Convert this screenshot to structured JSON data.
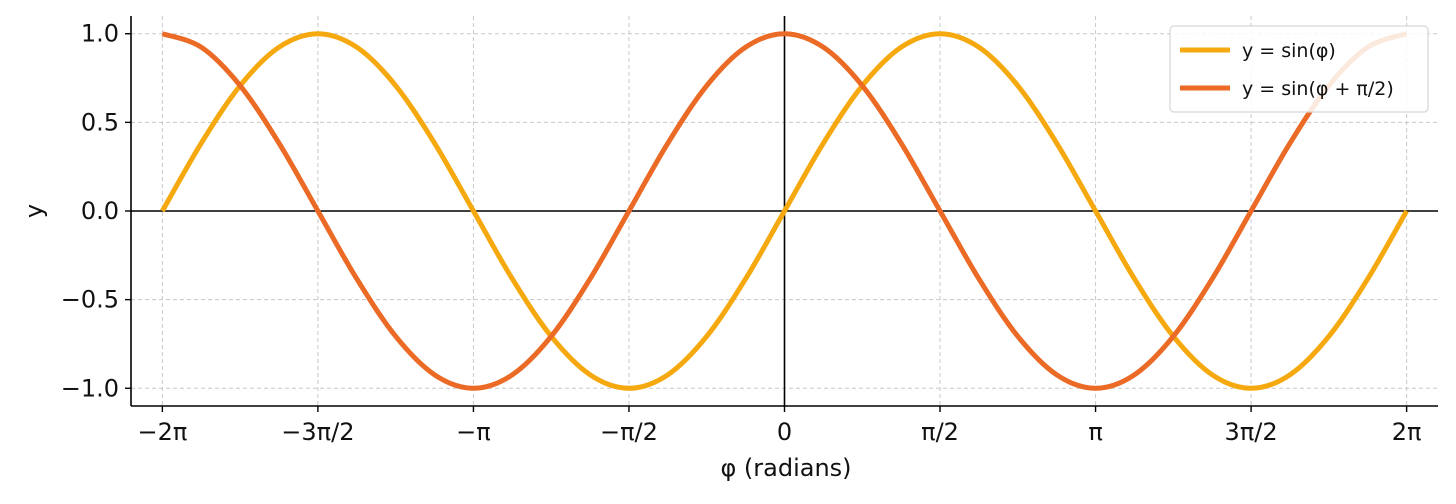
{
  "chart_data": {
    "type": "line",
    "xlabel": "φ (radians)",
    "ylabel": "y",
    "xlim": [
      -6.6,
      6.6
    ],
    "ylim": [
      -1.1,
      1.1
    ],
    "grid": true,
    "legend_position": "top-right",
    "x_ticks": [
      {
        "value": -6.283185,
        "label": "−2π"
      },
      {
        "value": -4.712389,
        "label": "−3π/2"
      },
      {
        "value": -3.141593,
        "label": "−π"
      },
      {
        "value": -1.570796,
        "label": "−π/2"
      },
      {
        "value": 0,
        "label": "0"
      },
      {
        "value": 1.570796,
        "label": "π/2"
      },
      {
        "value": 3.141593,
        "label": "π"
      },
      {
        "value": 4.712389,
        "label": "3π/2"
      },
      {
        "value": 6.283185,
        "label": "2π"
      }
    ],
    "y_ticks": [
      {
        "value": 1.0,
        "label": "1.0"
      },
      {
        "value": 0.5,
        "label": "0.5"
      },
      {
        "value": 0.0,
        "label": "0.0"
      },
      {
        "value": -0.5,
        "label": "−0.5"
      },
      {
        "value": -1.0,
        "label": "−1.0"
      }
    ],
    "series": [
      {
        "name": "y = sin(φ)",
        "color": "#F5A90F",
        "x": [
          -6.283185,
          -5.890486,
          -5.497787,
          -5.105088,
          -4.712389,
          -4.31969,
          -3.926991,
          -3.534292,
          -3.141593,
          -2.748894,
          -2.356194,
          -1.963495,
          -1.570796,
          -1.178097,
          -0.785398,
          -0.392699,
          0,
          0.392699,
          0.785398,
          1.178097,
          1.570796,
          1.963495,
          2.356194,
          2.748894,
          3.141593,
          3.534292,
          3.926991,
          4.31969,
          4.712389,
          5.105088,
          5.497787,
          5.890486,
          6.283185
        ],
        "y": [
          0,
          0.3827,
          0.7071,
          0.9239,
          1,
          0.9239,
          0.7071,
          0.3827,
          0,
          -0.3827,
          -0.7071,
          -0.9239,
          -1,
          -0.9239,
          -0.7071,
          -0.3827,
          0,
          0.3827,
          0.7071,
          0.9239,
          1,
          0.9239,
          0.7071,
          0.3827,
          0,
          -0.3827,
          -0.7071,
          -0.9239,
          -1,
          -0.9239,
          -0.7071,
          -0.3827,
          0
        ]
      },
      {
        "name": "y = sin(φ + π/2)",
        "color": "#EB6A25",
        "x": [
          -6.283185,
          -5.890486,
          -5.497787,
          -5.105088,
          -4.712389,
          -4.31969,
          -3.926991,
          -3.534292,
          -3.141593,
          -2.748894,
          -2.356194,
          -1.963495,
          -1.570796,
          -1.178097,
          -0.785398,
          -0.392699,
          0,
          0.392699,
          0.785398,
          1.178097,
          1.570796,
          1.963495,
          2.356194,
          2.748894,
          3.141593,
          3.534292,
          3.926991,
          4.31969,
          4.712389,
          5.105088,
          5.497787,
          5.890486,
          6.283185
        ],
        "y": [
          1,
          0.9239,
          0.7071,
          0.3827,
          0,
          -0.3827,
          -0.7071,
          -0.9239,
          -1,
          -0.9239,
          -0.7071,
          -0.3827,
          0,
          0.3827,
          0.7071,
          0.9239,
          1,
          0.9239,
          0.7071,
          0.3827,
          0,
          -0.3827,
          -0.7071,
          -0.9239,
          -1,
          -0.9239,
          -0.7071,
          -0.3827,
          0,
          0.3827,
          0.7071,
          0.9239,
          1
        ]
      }
    ]
  }
}
